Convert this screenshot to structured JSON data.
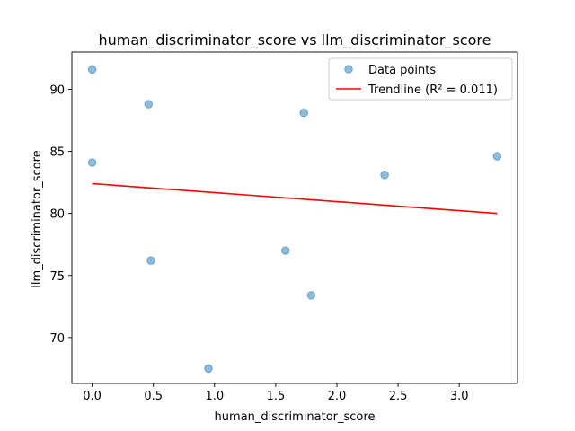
{
  "chart_data": {
    "type": "scatter",
    "title": "human_discriminator_score vs llm_discriminator_score",
    "xlabel": "human_discriminator_score",
    "ylabel": "llm_discriminator_score",
    "xlim": [
      -0.166,
      3.476
    ],
    "ylim": [
      66.3,
      93.0
    ],
    "xticks": [
      0.0,
      0.5,
      1.0,
      1.5,
      2.0,
      2.5,
      3.0
    ],
    "xtick_labels": [
      "0.0",
      "0.5",
      "1.0",
      "1.5",
      "2.0",
      "2.5",
      "3.0"
    ],
    "yticks": [
      70,
      75,
      80,
      85,
      90
    ],
    "ytick_labels": [
      "70",
      "75",
      "80",
      "85",
      "90"
    ],
    "grid": false,
    "legend_position": "top-right",
    "series": [
      {
        "name": "Data points",
        "kind": "scatter",
        "color": "#1f77b4",
        "points": [
          {
            "x": 0.0,
            "y": 91.6
          },
          {
            "x": 0.0,
            "y": 84.1
          },
          {
            "x": 0.46,
            "y": 88.8
          },
          {
            "x": 0.48,
            "y": 76.2
          },
          {
            "x": 0.95,
            "y": 67.5
          },
          {
            "x": 1.58,
            "y": 77.0
          },
          {
            "x": 1.73,
            "y": 88.1
          },
          {
            "x": 1.79,
            "y": 73.4
          },
          {
            "x": 2.39,
            "y": 83.1
          },
          {
            "x": 3.31,
            "y": 84.6
          }
        ]
      },
      {
        "name": "Trendline (R² = 0.011)",
        "kind": "line",
        "color": "#ff0000",
        "points": [
          {
            "x": 0.0,
            "y": 82.4
          },
          {
            "x": 3.31,
            "y": 80.0
          }
        ]
      }
    ]
  }
}
